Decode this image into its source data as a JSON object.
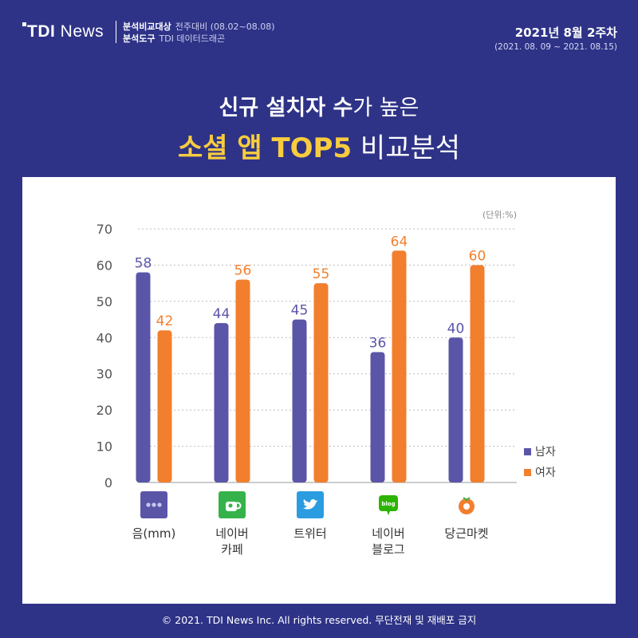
{
  "header": {
    "logo_text": "TDI",
    "logo_sub": "News",
    "compare_key": "분석비교대상",
    "compare_val": "전주대비 (08.02~08.08)",
    "tool_key": "분석도구",
    "tool_val": "TDI 데이터드래곤",
    "week": "2021년 8월 2주차",
    "period": "(2021. 08. 09 ~ 2021. 08.15)"
  },
  "title": {
    "line1_bold": "신규 설치자 수",
    "line1_rest": "가 높은",
    "line2_highlight": "소셜 앱 TOP5",
    "line2_rest": " 비교분석"
  },
  "footer": "© 2021. TDI News Inc. All rights reserved. 무단전재 및 재배포 금지",
  "colors": {
    "male": "#5b55a8",
    "female": "#f27f2e",
    "background": "#2e3387",
    "accent": "#f8cc3e"
  },
  "chart_data": {
    "type": "bar",
    "unit_note": "(단위:%)",
    "categories": [
      "음(mm)",
      "네이버\n카페",
      "트위터",
      "네이버\n블로그",
      "당근마켓"
    ],
    "category_icons": [
      "mm-dots-icon",
      "naver-cafe-cup-icon",
      "twitter-bird-icon",
      "naver-blog-icon",
      "carrot-icon"
    ],
    "series": [
      {
        "name": "남자",
        "values": [
          58,
          44,
          45,
          36,
          40
        ]
      },
      {
        "name": "여자",
        "values": [
          42,
          56,
          55,
          64,
          60
        ]
      }
    ],
    "ylim": [
      0,
      70
    ],
    "yticks": [
      0,
      10,
      20,
      30,
      40,
      50,
      60,
      70
    ],
    "grid": true,
    "legend_position": "right"
  }
}
